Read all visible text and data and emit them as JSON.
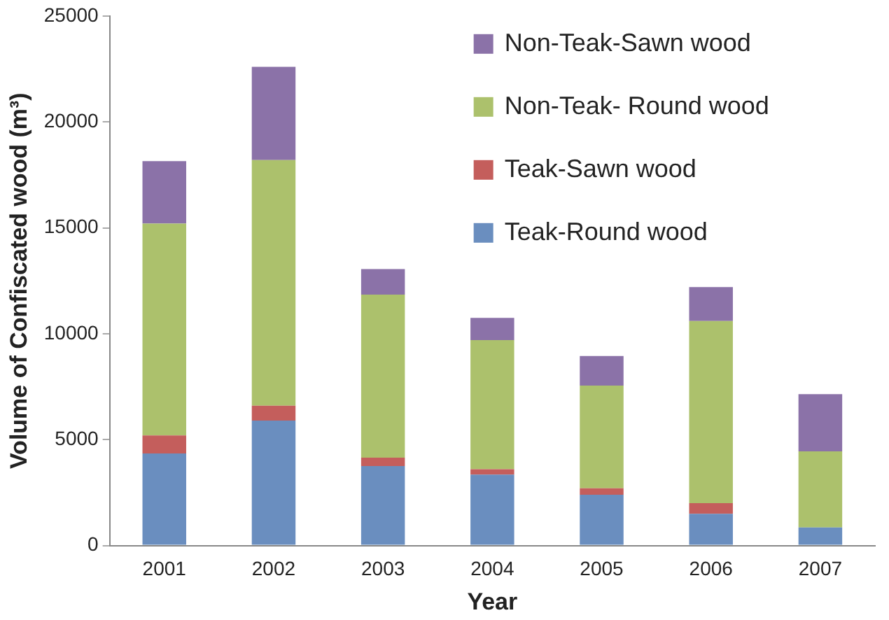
{
  "chart_data": {
    "type": "bar",
    "stacked": true,
    "xlabel": "Year",
    "ylabel": "Volume of Confiscated wood (m³)",
    "categories": [
      "2001",
      "2002",
      "2003",
      "2004",
      "2005",
      "2006",
      "2007"
    ],
    "series": [
      {
        "name": "Teak-Round wood",
        "color": "#6a8ebf",
        "values": [
          4350,
          5900,
          3750,
          3350,
          2400,
          1500,
          850
        ]
      },
      {
        "name": "Teak-Sawn wood",
        "color": "#c45e5c",
        "values": [
          850,
          700,
          400,
          250,
          300,
          500,
          0
        ]
      },
      {
        "name": "Non-Teak- Round wood",
        "color": "#acc16c",
        "values": [
          10000,
          11600,
          7700,
          6100,
          4850,
          8600,
          3600
        ]
      },
      {
        "name": "Non-Teak-Sawn wood",
        "color": "#8b72a8",
        "values": [
          2950,
          4400,
          1200,
          1050,
          1400,
          1600,
          2700
        ]
      }
    ],
    "ylim": [
      0,
      25000
    ],
    "yticks": [
      0,
      5000,
      10000,
      15000,
      20000,
      25000
    ],
    "grid": false,
    "legend": "top right"
  }
}
